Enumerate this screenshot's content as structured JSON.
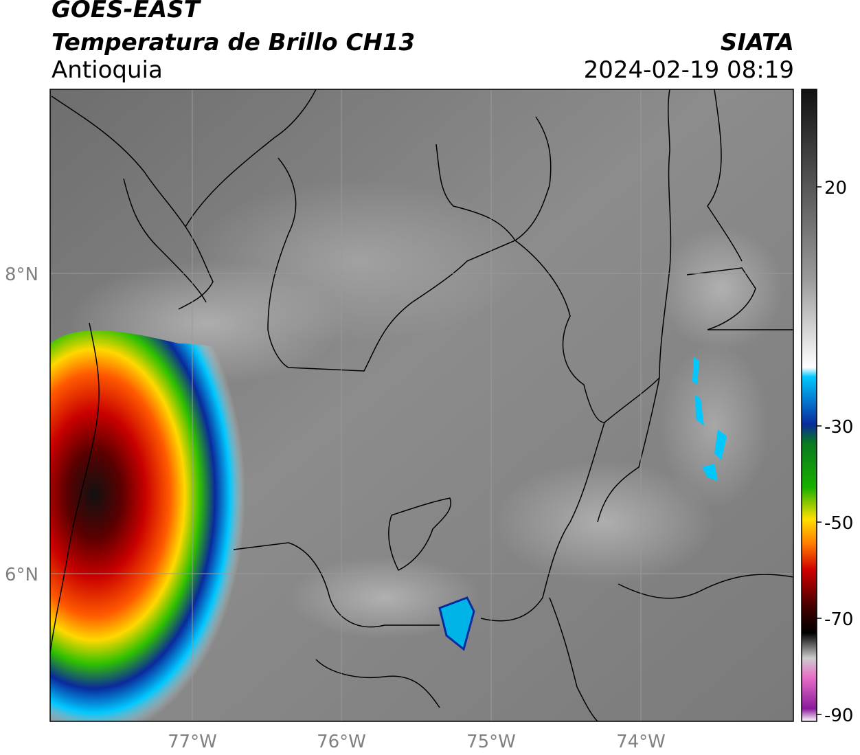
{
  "header": {
    "satellite": "GOES-EAST",
    "product": "Temperatura de Brillo CH13",
    "region": "Antioquia",
    "agency": "SIATA",
    "timestamp": "2024-02-19 08:19"
  },
  "map": {
    "lat_labels": [
      "8°N",
      "6°N"
    ],
    "lon_labels": [
      "77°W",
      "76°W",
      "75°W",
      "74°W"
    ]
  },
  "colorbar": {
    "ticks": [
      "20",
      "-30",
      "-50",
      "-70",
      "-90"
    ],
    "colors": {
      "warm_gray_top": "#111111",
      "gray_mid": "#9a9a9a",
      "light": "#ffffff",
      "cyan": "#00c8ff",
      "blue": "#0a2a9c",
      "green": "#19b000",
      "yellow": "#ffe000",
      "orange": "#ff7a00",
      "red": "#d00000",
      "dark_red": "#400000",
      "black": "#000000",
      "pink": "#e870c8",
      "purple": "#8a1a9a"
    }
  }
}
